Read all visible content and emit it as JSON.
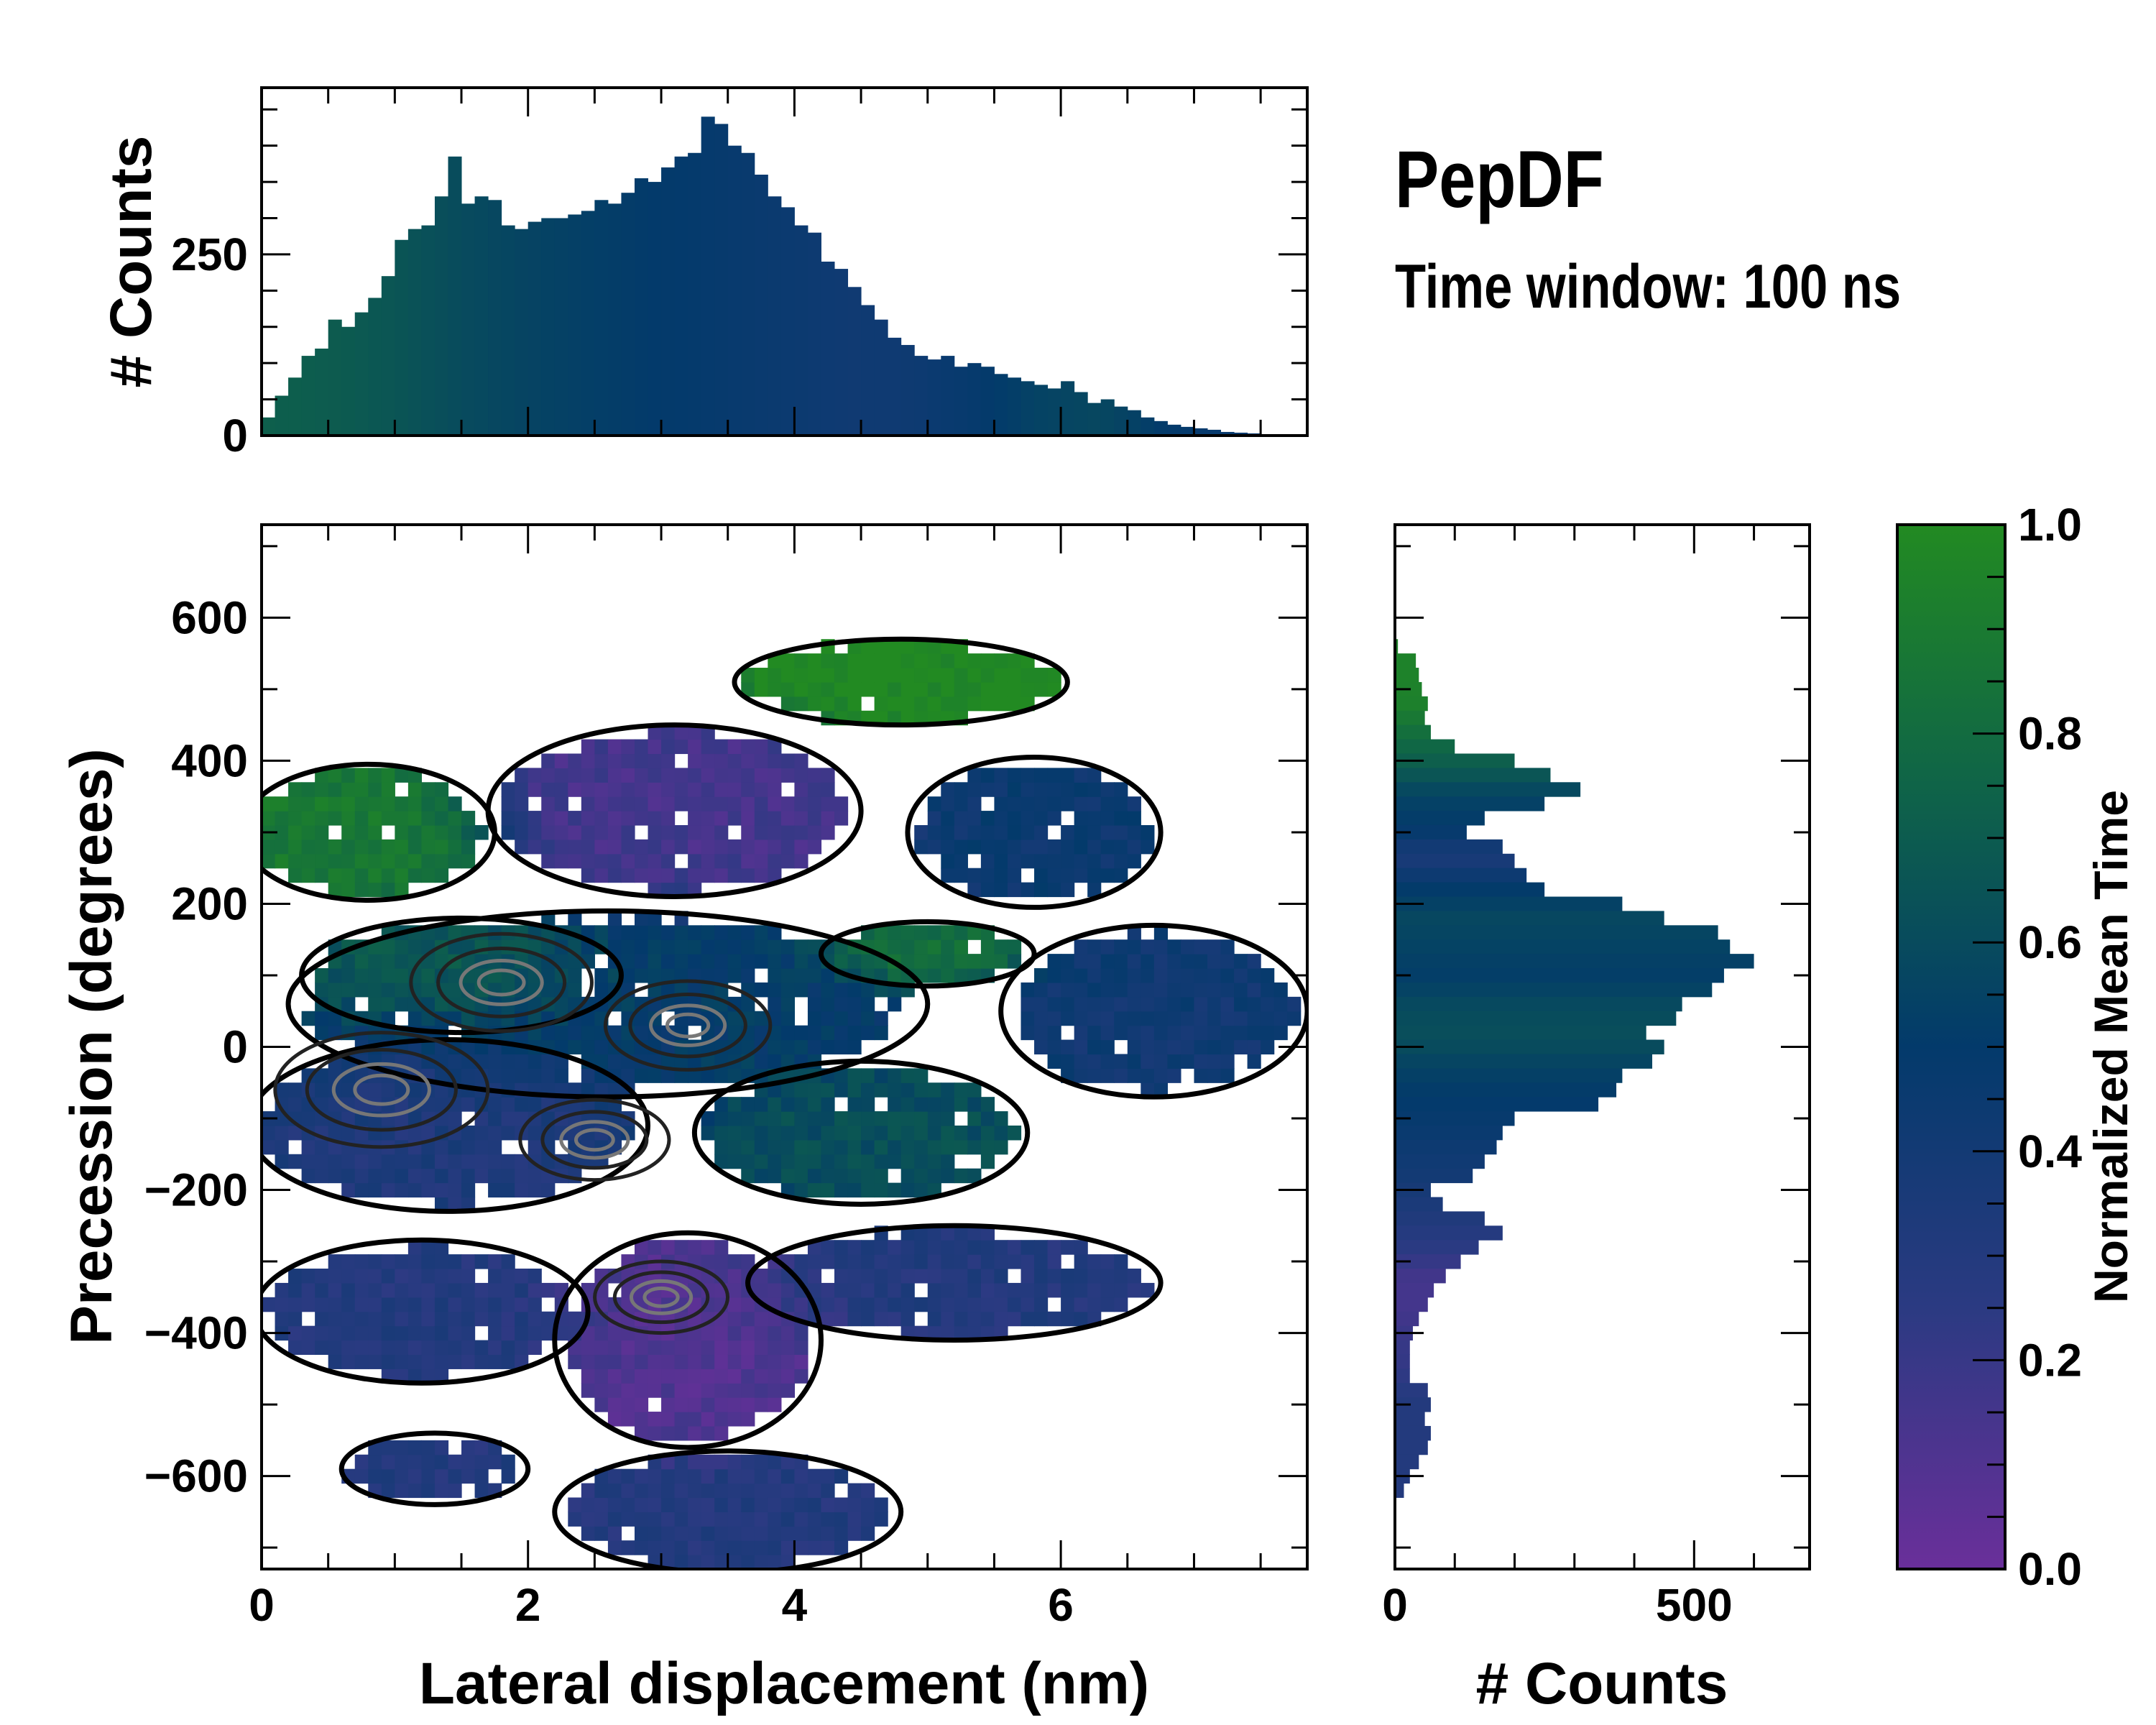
{
  "title": "PepDF",
  "subtitle": "Time window: 100 ns",
  "colors": {
    "cmap": [
      "#6a2f9a",
      "#2b3a82",
      "#033a6b",
      "#0f6448",
      "#228a22"
    ],
    "contour_outer": "#000000",
    "contour_inner": "#777777"
  },
  "chart_data": [
    {
      "type": "heatmap",
      "name": "main",
      "xlabel": "Lateral displacement (nm)",
      "ylabel": "Precession (degrees)",
      "xlim": [
        0,
        7.85
      ],
      "ylim": [
        -730,
        730
      ],
      "xticks": [
        "0",
        "2",
        "4",
        "6"
      ],
      "xtick_values": [
        0,
        2,
        4,
        6
      ],
      "yticks": [
        "−600",
        "−400",
        "−200",
        "0",
        "200",
        "400",
        "600"
      ],
      "ytick_values": [
        -600,
        -400,
        -200,
        0,
        200,
        400,
        600
      ],
      "cell": {
        "dx": 0.1,
        "dy": 20
      },
      "regions": [
        {
          "x": 0.8,
          "y": 300,
          "rx": 0.95,
          "ry": 95,
          "t": 0.88
        },
        {
          "x": 4.8,
          "y": 510,
          "rx": 1.25,
          "ry": 60,
          "t": 1.0
        },
        {
          "x": 3.1,
          "y": 330,
          "rx": 1.4,
          "ry": 120,
          "t": 0.15
        },
        {
          "x": 5.8,
          "y": 300,
          "rx": 0.95,
          "ry": 105,
          "t": 0.45
        },
        {
          "x": 2.6,
          "y": 60,
          "rx": 2.4,
          "ry": 130,
          "t": 0.5
        },
        {
          "x": 1.5,
          "y": 100,
          "rx": 1.2,
          "ry": 80,
          "t": 0.75
        },
        {
          "x": 6.7,
          "y": 50,
          "rx": 1.15,
          "ry": 120,
          "t": 0.42
        },
        {
          "x": 5.0,
          "y": 130,
          "rx": 0.8,
          "ry": 45,
          "t": 0.85
        },
        {
          "x": 4.5,
          "y": -120,
          "rx": 1.25,
          "ry": 100,
          "t": 0.62
        },
        {
          "x": 1.4,
          "y": -110,
          "rx": 1.5,
          "ry": 120,
          "t": 0.33
        },
        {
          "x": 3.2,
          "y": -410,
          "rx": 1.0,
          "ry": 150,
          "t": 0.1
        },
        {
          "x": 1.2,
          "y": -370,
          "rx": 1.25,
          "ry": 100,
          "t": 0.3
        },
        {
          "x": 5.2,
          "y": -330,
          "rx": 1.55,
          "ry": 80,
          "t": 0.3
        },
        {
          "x": 3.5,
          "y": -650,
          "rx": 1.3,
          "ry": 85,
          "t": 0.3
        },
        {
          "x": 1.3,
          "y": -590,
          "rx": 0.7,
          "ry": 50,
          "t": 0.3
        }
      ],
      "density_peaks": [
        {
          "x": 0.9,
          "y": -60,
          "level": 1.0
        },
        {
          "x": 1.8,
          "y": 90,
          "level": 0.8
        },
        {
          "x": 3.2,
          "y": 30,
          "level": 0.7
        },
        {
          "x": 2.5,
          "y": -130,
          "level": 0.6
        },
        {
          "x": 3.0,
          "y": -350,
          "level": 0.5
        }
      ]
    },
    {
      "type": "bar",
      "name": "top-histogram",
      "ylabel": "# Counts",
      "yticks": [
        "0",
        "250"
      ],
      "ytick_values": [
        0,
        250
      ],
      "ylim": [
        0,
        480
      ],
      "bin_start": 0,
      "bin_width": 0.1,
      "values": [
        25,
        55,
        80,
        110,
        120,
        160,
        150,
        170,
        190,
        220,
        270,
        285,
        290,
        330,
        385,
        320,
        330,
        325,
        290,
        285,
        295,
        300,
        300,
        305,
        310,
        325,
        320,
        335,
        355,
        350,
        370,
        385,
        390,
        440,
        430,
        400,
        390,
        360,
        330,
        315,
        290,
        280,
        240,
        230,
        205,
        180,
        160,
        135,
        125,
        110,
        105,
        110,
        95,
        100,
        95,
        85,
        80,
        75,
        70,
        65,
        75,
        60,
        45,
        50,
        40,
        35,
        25,
        20,
        15,
        12,
        10,
        8,
        5,
        4,
        3,
        2,
        2,
        1
      ],
      "mean_time": [
        0.72,
        0.7,
        0.66,
        0.6,
        0.56,
        0.53,
        0.5,
        0.48,
        0.45,
        0.42,
        0.43,
        0.48,
        0.55,
        0.58,
        0.5,
        0.47,
        0.46
      ]
    },
    {
      "type": "bar",
      "orientation": "horizontal",
      "name": "right-histogram",
      "xlabel": "# Counts",
      "xticks": [
        "0",
        "500"
      ],
      "xtick_values": [
        0,
        500
      ],
      "xlim": [
        0,
        693
      ],
      "bin_start": 570,
      "bin_width": -20,
      "values": [
        5,
        35,
        40,
        45,
        55,
        50,
        60,
        100,
        200,
        260,
        310,
        250,
        150,
        120,
        180,
        200,
        220,
        250,
        380,
        450,
        540,
        560,
        600,
        550,
        530,
        480,
        470,
        420,
        450,
        430,
        380,
        370,
        340,
        200,
        180,
        170,
        150,
        130,
        60,
        80,
        150,
        180,
        140,
        110,
        85,
        65,
        55,
        40,
        30,
        25,
        25,
        25,
        55,
        60,
        50,
        60,
        55,
        40,
        25,
        15
      ],
      "mean_time": [
        0.95,
        0.95,
        0.93,
        0.8,
        0.7,
        0.55,
        0.5,
        0.35,
        0.5,
        0.58,
        0.55,
        0.52,
        0.6,
        0.62,
        0.55,
        0.5,
        0.46,
        0.42,
        0.38,
        0.32,
        0.25,
        0.15,
        0.15,
        0.2,
        0.22,
        0.3,
        0.3,
        0.3,
        0.3
      ]
    },
    {
      "type": "colorbar",
      "name": "colorbar",
      "label": "Normalized Mean Time",
      "range": [
        0,
        1
      ],
      "ticks": [
        "0.0",
        "0.2",
        "0.4",
        "0.6",
        "0.8",
        "1.0"
      ],
      "tick_values": [
        0,
        0.2,
        0.4,
        0.6,
        0.8,
        1.0
      ]
    }
  ]
}
